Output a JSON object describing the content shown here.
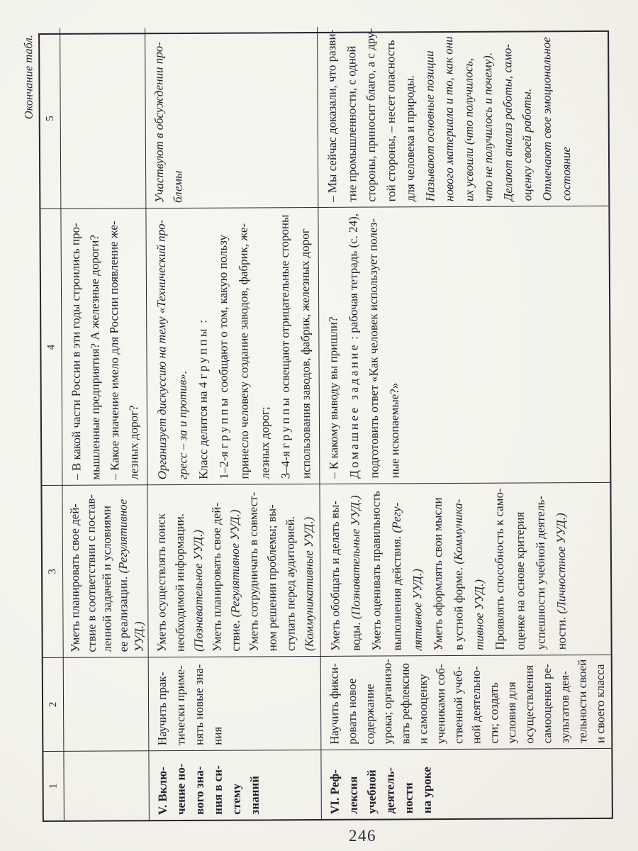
{
  "page": {
    "continuation_note": "Окончание табл.",
    "page_number": "246"
  },
  "colors": {
    "paper": "#f3f2eb",
    "ink": "#211e2a",
    "table_border": "#262231"
  },
  "table": {
    "orientation": "rotated-90-ccw",
    "column_numbers": [
      "1",
      "2",
      "3",
      "4",
      "5"
    ],
    "rows": [
      {
        "name": "row-continued",
        "cells": [
          {
            "lines": []
          },
          {
            "lines": []
          },
          {
            "lines": [
              "Уметь планировать свое дей-",
              "ствие в соответствии с постав-",
              "ленной задачей и условиями",
              [
                "ее реализации. ",
                {
                  "i": "(Регулятивное"
                }
              ],
              {
                "i": "УУД.)"
              }
            ]
          },
          {
            "lines": [
              "– В какой части России в эти годы строились про-",
              "мышленные предприятия? А железные дороги?",
              "– Какое значение имело для России появление же-",
              "лезных дорог?"
            ]
          },
          {
            "lines": []
          }
        ]
      },
      {
        "name": "row-v-inclusion",
        "cells": [
          {
            "lines": [
              "V. Вклю-",
              "чение но-",
              "вого зна-",
              "ния в си-",
              "стему",
              "знаний"
            ]
          },
          {
            "lines": [
              "Научить прак-",
              "тически приме-",
              "нять новые зна-",
              "ния"
            ]
          },
          {
            "lines": [
              "Уметь осуществлять поиск",
              "необходимой информации.",
              {
                "i": "(Познавательное УУД.)"
              },
              "Уметь планировать свое дей-",
              [
                "ствие. ",
                {
                  "i": "(Регулятивное УУД.)"
                }
              ],
              "Уметь сотрудничать в совмест-",
              "ном решении проблемы; вы-",
              "ступать перед аудиторией.",
              {
                "i": "(Коммуникативные УУД.)"
              }
            ]
          },
          {
            "lines": [
              {
                "i": "Организует дискуссию на тему «Технический про-"
              },
              {
                "i": "гресс – за и против»."
              },
              [
                "Класс делится на 4 ",
                {
                  "sp": "группы"
                },
                " :"
              ],
              [
                "1–2-я ",
                {
                  "sp": "группы"
                },
                " сообщают о том, какую пользу"
              ],
              "принесло человеку создание заводов, фабрик, же-",
              "лезных дорог;",
              [
                "3–4-я ",
                {
                  "sp": "группы"
                },
                " освещают отрицательные стороны"
              ],
              "использования заводов, фабрик, железных дорог"
            ]
          },
          {
            "lines": [
              {
                "i": "Участвуют в обсуждении про-"
              },
              {
                "i": "блемы"
              }
            ]
          }
        ]
      },
      {
        "name": "row-vi-reflection",
        "cells": [
          {
            "lines": [
              "VI. Реф-",
              "лексия",
              "учебной",
              "деятель-",
              "ности",
              "на уроке"
            ]
          },
          {
            "lines": [
              "Научить фикси-",
              "ровать новое",
              "содержание",
              "урока; организо-",
              "вать рефлексию",
              "и самооценку",
              "учениками соб-",
              "ственной учеб-",
              "ной деятельно-",
              "сти; создать",
              "условия для",
              "осуществления",
              "самооценки ре-",
              "зультатов дея-",
              "тельности своей",
              "и своего класса"
            ]
          },
          {
            "lines": [
              "Уметь обобщать и делать вы-",
              [
                "воды. ",
                {
                  "i": "(Познавательные УУД.)"
                }
              ],
              "Уметь оценивать правильность",
              [
                "выполнения действия. ",
                {
                  "i": "(Регу-"
                }
              ],
              {
                "i": "лятивное УУД.)"
              },
              "Уметь оформлять свои мысли",
              [
                "в устной форме. ",
                {
                  "i": "(Коммуника-"
                }
              ],
              {
                "i": "тивное УУД.)"
              },
              "Проявлять способность к само-",
              "оценке на основе критерия",
              "успешности учебной деятель-",
              [
                "ности. ",
                {
                  "i": "(Личностное УУД.)"
                }
              ]
            ]
          },
          {
            "lines": [
              "– К какому выводу вы пришли?",
              [
                {
                  "sp": "Домашнее задание"
                },
                " : рабочая тетрадь (с. 24),"
              ],
              "подготовить ответ «Как человек использует полез-",
              "ные ископаемые?»"
            ]
          },
          {
            "lines": [
              "– Мы сейчас доказали, что разви-",
              "тие промышленности, с одной",
              "стороны, приносит благо, а с дру-",
              "гой стороны, – несет опасность",
              "для человека и природы.",
              {
                "i": "Называют основные позиции"
              },
              {
                "i": "нового материала и то, как они"
              },
              {
                "i": "их усвоили (что получилось,"
              },
              {
                "i": "что не получилось и почему)."
              },
              {
                "i": "Делают анализ работы, само-"
              },
              {
                "i": "оценку своей работы."
              },
              {
                "i": "Отмечают свое эмоциональное"
              },
              {
                "i": "состояние"
              }
            ]
          }
        ]
      }
    ]
  }
}
